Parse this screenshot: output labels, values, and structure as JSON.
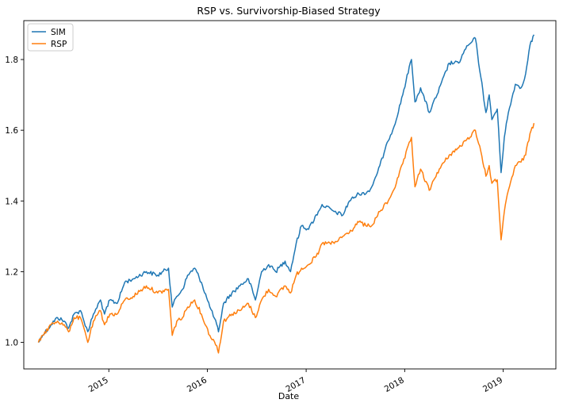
{
  "chart_data": {
    "type": "line",
    "title": "RSP vs. Survivorship-Biased Strategy",
    "xlabel": "Date",
    "ylabel": "",
    "x_type": "date",
    "xlim": [
      "2014-02-20",
      "2019-07-15"
    ],
    "ylim": [
      0.925,
      1.91
    ],
    "yticks": [
      1.0,
      1.2,
      1.4,
      1.6,
      1.8
    ],
    "ytick_labels": [
      "1.0",
      "1.2",
      "1.4",
      "1.6",
      "1.8"
    ],
    "xticks": [
      "2015-01-01",
      "2016-01-01",
      "2017-01-01",
      "2018-01-01",
      "2019-01-01"
    ],
    "xtick_labels": [
      "2015",
      "2016",
      "2017",
      "2018",
      "2019"
    ],
    "grid": false,
    "legend_position": "top-left",
    "series": [
      {
        "name": "SIM",
        "color": "#1f77b4",
        "points": [
          [
            "2014-04-15",
            1.0
          ],
          [
            "2014-05-01",
            1.02
          ],
          [
            "2014-06-01",
            1.05
          ],
          [
            "2014-06-25",
            1.07
          ],
          [
            "2014-07-20",
            1.06
          ],
          [
            "2014-08-05",
            1.04
          ],
          [
            "2014-08-25",
            1.08
          ],
          [
            "2014-09-18",
            1.09
          ],
          [
            "2014-10-01",
            1.06
          ],
          [
            "2014-10-15",
            1.03
          ],
          [
            "2014-11-05",
            1.08
          ],
          [
            "2014-12-01",
            1.12
          ],
          [
            "2014-12-16",
            1.08
          ],
          [
            "2015-01-05",
            1.12
          ],
          [
            "2015-02-01",
            1.11
          ],
          [
            "2015-03-01",
            1.17
          ],
          [
            "2015-04-01",
            1.18
          ],
          [
            "2015-05-20",
            1.2
          ],
          [
            "2015-07-01",
            1.19
          ],
          [
            "2015-08-10",
            1.21
          ],
          [
            "2015-08-24",
            1.1
          ],
          [
            "2015-09-10",
            1.13
          ],
          [
            "2015-10-01",
            1.15
          ],
          [
            "2015-10-20",
            1.19
          ],
          [
            "2015-11-15",
            1.21
          ],
          [
            "2015-12-10",
            1.17
          ],
          [
            "2016-01-10",
            1.1
          ],
          [
            "2016-02-05",
            1.05
          ],
          [
            "2016-02-11",
            1.03
          ],
          [
            "2016-03-01",
            1.11
          ],
          [
            "2016-04-01",
            1.14
          ],
          [
            "2016-05-01",
            1.16
          ],
          [
            "2016-06-01",
            1.18
          ],
          [
            "2016-06-27",
            1.12
          ],
          [
            "2016-07-20",
            1.2
          ],
          [
            "2016-08-15",
            1.22
          ],
          [
            "2016-09-10",
            1.2
          ],
          [
            "2016-10-15",
            1.23
          ],
          [
            "2016-11-04",
            1.2
          ],
          [
            "2016-11-25",
            1.28
          ],
          [
            "2016-12-15",
            1.33
          ],
          [
            "2017-01-10",
            1.32
          ],
          [
            "2017-02-15",
            1.37
          ],
          [
            "2017-03-01",
            1.39
          ],
          [
            "2017-04-15",
            1.37
          ],
          [
            "2017-05-17",
            1.36
          ],
          [
            "2017-06-10",
            1.4
          ],
          [
            "2017-07-15",
            1.42
          ],
          [
            "2017-08-10",
            1.42
          ],
          [
            "2017-09-01",
            1.44
          ],
          [
            "2017-10-01",
            1.5
          ],
          [
            "2017-11-01",
            1.57
          ],
          [
            "2017-12-01",
            1.63
          ],
          [
            "2018-01-26",
            1.8
          ],
          [
            "2018-02-08",
            1.68
          ],
          [
            "2018-03-01",
            1.72
          ],
          [
            "2018-04-02",
            1.65
          ],
          [
            "2018-05-01",
            1.7
          ],
          [
            "2018-06-15",
            1.79
          ],
          [
            "2018-07-20",
            1.79
          ],
          [
            "2018-08-15",
            1.83
          ],
          [
            "2018-09-20",
            1.86
          ],
          [
            "2018-10-10",
            1.75
          ],
          [
            "2018-10-29",
            1.65
          ],
          [
            "2018-11-10",
            1.7
          ],
          [
            "2018-11-20",
            1.63
          ],
          [
            "2018-12-10",
            1.66
          ],
          [
            "2018-12-24",
            1.48
          ],
          [
            "2019-01-05",
            1.58
          ],
          [
            "2019-01-20",
            1.65
          ],
          [
            "2019-02-15",
            1.73
          ],
          [
            "2019-03-08",
            1.72
          ],
          [
            "2019-03-25",
            1.76
          ],
          [
            "2019-04-10",
            1.84
          ],
          [
            "2019-04-25",
            1.87
          ]
        ]
      },
      {
        "name": "RSP",
        "color": "#ff7f0e",
        "points": [
          [
            "2014-04-15",
            1.0
          ],
          [
            "2014-05-01",
            1.02
          ],
          [
            "2014-06-01",
            1.05
          ],
          [
            "2014-06-25",
            1.06
          ],
          [
            "2014-07-20",
            1.05
          ],
          [
            "2014-08-05",
            1.03
          ],
          [
            "2014-08-25",
            1.07
          ],
          [
            "2014-09-18",
            1.07
          ],
          [
            "2014-10-01",
            1.04
          ],
          [
            "2014-10-15",
            1.0
          ],
          [
            "2014-11-05",
            1.06
          ],
          [
            "2014-12-01",
            1.09
          ],
          [
            "2014-12-16",
            1.05
          ],
          [
            "2015-01-05",
            1.08
          ],
          [
            "2015-02-01",
            1.08
          ],
          [
            "2015-03-01",
            1.12
          ],
          [
            "2015-04-01",
            1.13
          ],
          [
            "2015-05-20",
            1.16
          ],
          [
            "2015-07-01",
            1.14
          ],
          [
            "2015-08-10",
            1.15
          ],
          [
            "2015-08-24",
            1.02
          ],
          [
            "2015-09-10",
            1.06
          ],
          [
            "2015-10-01",
            1.07
          ],
          [
            "2015-10-20",
            1.1
          ],
          [
            "2015-11-15",
            1.12
          ],
          [
            "2015-12-10",
            1.08
          ],
          [
            "2016-01-10",
            1.02
          ],
          [
            "2016-02-05",
            0.99
          ],
          [
            "2016-02-11",
            0.97
          ],
          [
            "2016-03-01",
            1.06
          ],
          [
            "2016-04-01",
            1.08
          ],
          [
            "2016-05-01",
            1.09
          ],
          [
            "2016-06-01",
            1.11
          ],
          [
            "2016-06-27",
            1.07
          ],
          [
            "2016-07-20",
            1.12
          ],
          [
            "2016-08-15",
            1.15
          ],
          [
            "2016-09-10",
            1.13
          ],
          [
            "2016-10-15",
            1.16
          ],
          [
            "2016-11-04",
            1.14
          ],
          [
            "2016-11-25",
            1.19
          ],
          [
            "2016-12-15",
            1.21
          ],
          [
            "2017-01-10",
            1.22
          ],
          [
            "2017-02-15",
            1.25
          ],
          [
            "2017-03-01",
            1.28
          ],
          [
            "2017-04-15",
            1.28
          ],
          [
            "2017-05-17",
            1.3
          ],
          [
            "2017-06-10",
            1.31
          ],
          [
            "2017-07-15",
            1.34
          ],
          [
            "2017-08-10",
            1.33
          ],
          [
            "2017-09-01",
            1.33
          ],
          [
            "2017-10-01",
            1.37
          ],
          [
            "2017-11-01",
            1.4
          ],
          [
            "2017-12-01",
            1.45
          ],
          [
            "2018-01-26",
            1.58
          ],
          [
            "2018-02-08",
            1.44
          ],
          [
            "2018-03-01",
            1.49
          ],
          [
            "2018-04-02",
            1.43
          ],
          [
            "2018-05-01",
            1.48
          ],
          [
            "2018-06-15",
            1.53
          ],
          [
            "2018-07-20",
            1.55
          ],
          [
            "2018-08-15",
            1.57
          ],
          [
            "2018-09-20",
            1.6
          ],
          [
            "2018-10-10",
            1.54
          ],
          [
            "2018-10-29",
            1.47
          ],
          [
            "2018-11-10",
            1.5
          ],
          [
            "2018-11-20",
            1.45
          ],
          [
            "2018-12-10",
            1.46
          ],
          [
            "2018-12-24",
            1.29
          ],
          [
            "2019-01-05",
            1.37
          ],
          [
            "2019-01-20",
            1.43
          ],
          [
            "2019-02-15",
            1.5
          ],
          [
            "2019-03-08",
            1.51
          ],
          [
            "2019-03-25",
            1.53
          ],
          [
            "2019-04-10",
            1.59
          ],
          [
            "2019-04-25",
            1.62
          ]
        ]
      }
    ]
  }
}
